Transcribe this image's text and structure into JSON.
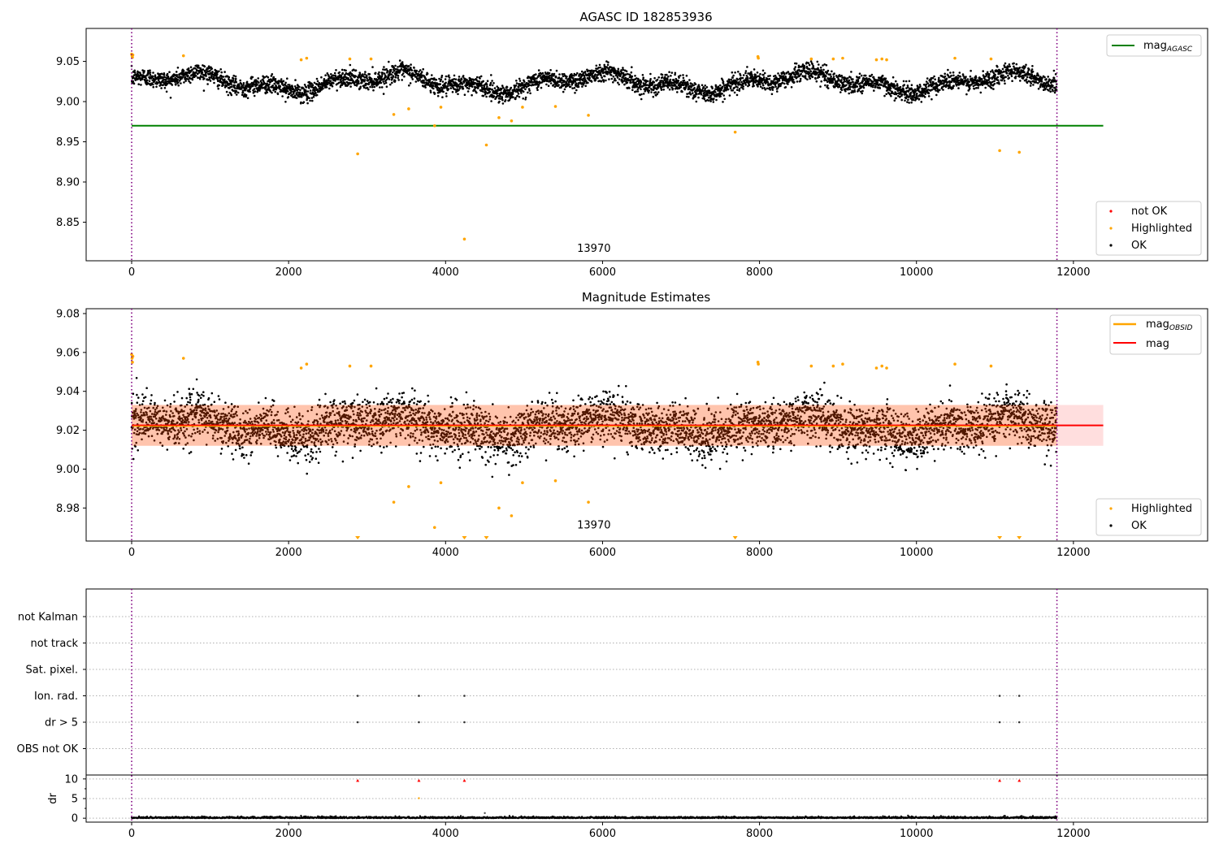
{
  "chart_data": [
    {
      "type": "scatter",
      "title": "AGASC ID 182853936",
      "xlim": [
        -580,
        13710
      ],
      "ylim": [
        8.802,
        9.091
      ],
      "xticks": [
        "0",
        "2000",
        "4000",
        "6000",
        "8000",
        "10000",
        "12000"
      ],
      "yticks": [
        "8.85",
        "8.90",
        "8.95",
        "9.00",
        "9.05"
      ],
      "vlines": [
        0,
        11790
      ],
      "obsid_label": {
        "text": "13970",
        "x": 5890,
        "y": 8.815
      },
      "hline": {
        "name": "mag$_{AGASC}$",
        "value": 8.97,
        "xrange": [
          0,
          12380
        ],
        "color": "#008000"
      },
      "ok_band": {
        "center": 9.024,
        "amplitude": 0.018,
        "noise": 0.01,
        "n": 4600,
        "xrange": [
          0,
          11790
        ]
      },
      "highlighted": [
        [
          0,
          9.059
        ],
        [
          5,
          9.057
        ],
        [
          10,
          9.055
        ],
        [
          15,
          9.058
        ],
        [
          660,
          9.057
        ],
        [
          2160,
          9.052
        ],
        [
          2230,
          9.054
        ],
        [
          2780,
          9.053
        ],
        [
          2880,
          8.935
        ],
        [
          3050,
          9.053
        ],
        [
          3340,
          8.984
        ],
        [
          3530,
          8.991
        ],
        [
          3860,
          8.97
        ],
        [
          3940,
          8.993
        ],
        [
          4240,
          8.829
        ],
        [
          4520,
          8.946
        ],
        [
          4680,
          8.98
        ],
        [
          4840,
          8.976
        ],
        [
          4980,
          8.993
        ],
        [
          5400,
          8.994
        ],
        [
          5820,
          8.983
        ],
        [
          7690,
          8.962
        ],
        [
          7980,
          9.056
        ],
        [
          7985,
          9.054
        ],
        [
          8660,
          9.053
        ],
        [
          8940,
          9.053
        ],
        [
          9060,
          9.054
        ],
        [
          9490,
          9.052
        ],
        [
          9560,
          9.053
        ],
        [
          9620,
          9.052
        ],
        [
          10490,
          9.054
        ],
        [
          10950,
          9.053
        ],
        [
          11060,
          8.939
        ],
        [
          11310,
          8.937
        ]
      ],
      "legend_line": {
        "label": "mag$_{AGASC}$",
        "position": "upper right"
      },
      "legend_points": {
        "position": "lower right",
        "entries": [
          {
            "label": "not OK",
            "color": "#ff0000"
          },
          {
            "label": "Highlighted",
            "color": "#ffa500"
          },
          {
            "label": "OK",
            "color": "#000000"
          }
        ]
      }
    },
    {
      "type": "scatter",
      "title": "Magnitude Estimates",
      "xlim": [
        -580,
        13710
      ],
      "ylim": [
        8.963,
        9.0825
      ],
      "xticks": [
        "0",
        "2000",
        "4000",
        "6000",
        "8000",
        "10000",
        "12000"
      ],
      "yticks": [
        "8.98",
        "9.00",
        "9.02",
        "9.04",
        "9.06",
        "9.08"
      ],
      "vlines": [
        0,
        11790
      ],
      "obsid_label": {
        "text": "13970",
        "x": 5890,
        "y": 8.967
      },
      "mag_line": {
        "value": 9.0225,
        "xrange": [
          0,
          12380
        ],
        "color": "#ff0000"
      },
      "mag_band": {
        "low": 9.012,
        "high": 9.033,
        "xrange": [
          0,
          12380
        ]
      },
      "ok_band": {
        "center": 9.022,
        "amplitude": 0.008,
        "noise": 0.011,
        "n": 5200,
        "xrange": [
          0,
          11790
        ]
      },
      "highlighted": [
        [
          0,
          9.059
        ],
        [
          5,
          9.057
        ],
        [
          10,
          9.055
        ],
        [
          15,
          9.058
        ],
        [
          660,
          9.057
        ],
        [
          2160,
          9.052
        ],
        [
          2230,
          9.054
        ],
        [
          2780,
          9.053
        ],
        [
          3050,
          9.053
        ],
        [
          3340,
          8.983
        ],
        [
          3530,
          8.991
        ],
        [
          3860,
          8.97
        ],
        [
          3940,
          8.993
        ],
        [
          4680,
          8.98
        ],
        [
          4840,
          8.976
        ],
        [
          4980,
          8.993
        ],
        [
          5400,
          8.994
        ],
        [
          5820,
          8.983
        ],
        [
          7980,
          9.055
        ],
        [
          7985,
          9.054
        ],
        [
          8660,
          9.053
        ],
        [
          8940,
          9.053
        ],
        [
          9060,
          9.054
        ],
        [
          9490,
          9.052
        ],
        [
          9560,
          9.053
        ],
        [
          9620,
          9.052
        ],
        [
          10490,
          9.054
        ],
        [
          10950,
          9.053
        ]
      ],
      "clipped_markers": [
        2880,
        4240,
        4520,
        7690,
        11060,
        11310
      ],
      "legend_line": {
        "position": "upper right",
        "entries": [
          {
            "label": "mag$_{OBSID}$",
            "color": "#ffa500"
          },
          {
            "label": "mag",
            "color": "#ff0000"
          }
        ]
      },
      "legend_points": {
        "position": "lower right",
        "entries": [
          {
            "label": "Highlighted",
            "color": "#ffa500"
          },
          {
            "label": "OK",
            "color": "#000000"
          }
        ]
      }
    },
    {
      "type": "scatter",
      "title": "",
      "xlim": [
        -580,
        13710
      ],
      "xticks": [
        "0",
        "2000",
        "4000",
        "6000",
        "8000",
        "10000",
        "12000"
      ],
      "vlines": [
        0,
        11790
      ],
      "flag_rows": [
        "not Kalman",
        "not track",
        "Sat. pixel.",
        "Ion. rad.",
        "dr > 5",
        "OBS not OK"
      ],
      "flag_points": {
        "Ion. rad.": [
          2880,
          3660,
          4240,
          11060,
          11310
        ],
        "dr > 5": [
          2880,
          3660,
          4240,
          11060,
          11310
        ]
      },
      "dr_ylabel": "dr",
      "dr_ylim": [
        -1,
        11
      ],
      "dr_yticks": [
        "0",
        "5",
        "10"
      ],
      "dr_capped": [
        2880,
        3660,
        4240,
        11060,
        11310
      ],
      "dr_extra": [
        [
          3660,
          5.1
        ],
        [
          4500,
          1.3
        ]
      ]
    }
  ]
}
